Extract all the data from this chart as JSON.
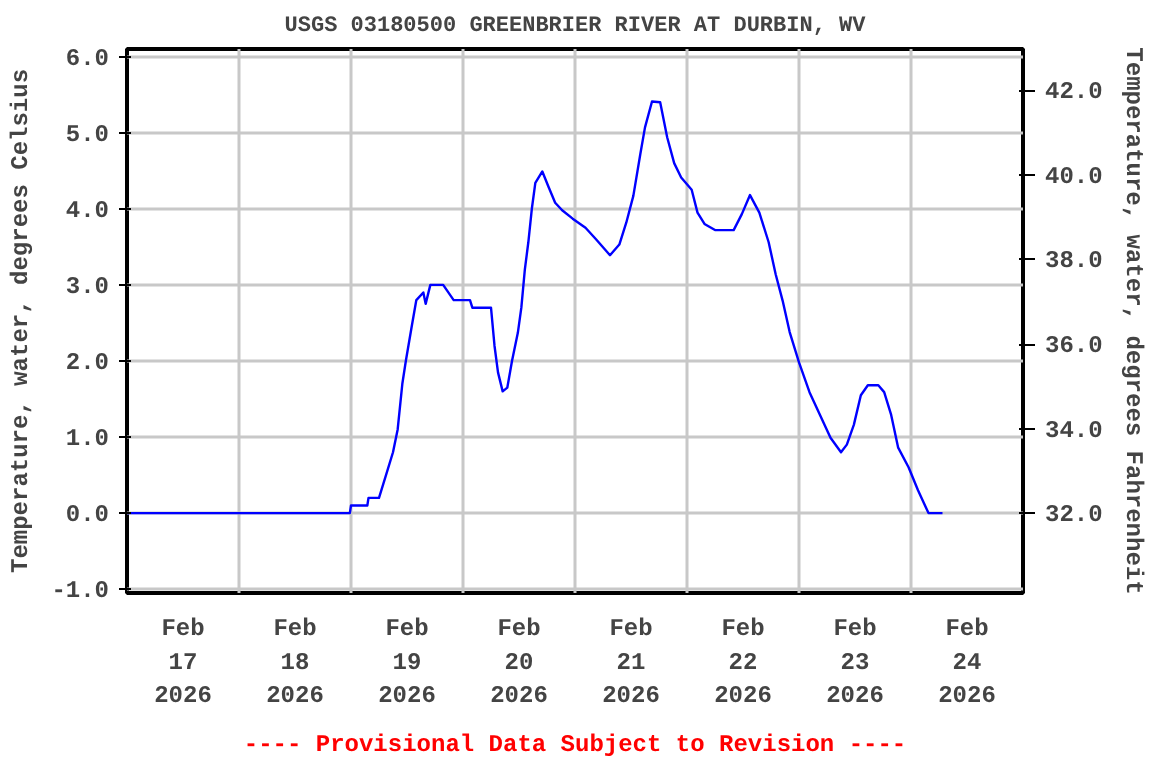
{
  "chart_data": {
    "type": "line",
    "title": "USGS 03180500 GREENBRIER RIVER AT DURBIN, WV",
    "ylabel": "Temperature, water, degrees Celsius",
    "y2label": "Temperature, water, degrees Fahrenheit",
    "annotations": [
      "---- Provisional Data Subject to Revision ----"
    ],
    "xlim": [
      "2026-02-17T00:00",
      "2026-02-25T00:00"
    ],
    "xticks": [
      {
        "value": "2026-02-17T00:00",
        "label": null
      },
      {
        "value": "2026-02-17T12:00",
        "label": "Feb\n17\n2026"
      },
      {
        "value": "2026-02-18T00:00",
        "label": null
      },
      {
        "value": "2026-02-18T12:00",
        "label": "Feb\n18\n2026"
      },
      {
        "value": "2026-02-19T00:00",
        "label": null
      },
      {
        "value": "2026-02-19T12:00",
        "label": "Feb\n19\n2026"
      },
      {
        "value": "2026-02-20T00:00",
        "label": null
      },
      {
        "value": "2026-02-20T12:00",
        "label": "Feb\n20\n2026"
      },
      {
        "value": "2026-02-21T00:00",
        "label": null
      },
      {
        "value": "2026-02-21T12:00",
        "label": "Feb\n21\n2026"
      },
      {
        "value": "2026-02-22T00:00",
        "label": null
      },
      {
        "value": "2026-02-22T12:00",
        "label": "Feb\n22\n2026"
      },
      {
        "value": "2026-02-23T00:00",
        "label": null
      },
      {
        "value": "2026-02-23T12:00",
        "label": "Feb\n23\n2026"
      },
      {
        "value": "2026-02-24T00:00",
        "label": null
      },
      {
        "value": "2026-02-24T12:00",
        "label": "Feb\n24\n2026"
      },
      {
        "value": "2026-02-25T00:00",
        "label": null
      }
    ],
    "ylim": [
      -1.05,
      6.1
    ],
    "yticks": [
      {
        "value": -1,
        "label": "-1.0"
      },
      {
        "value": 0,
        "label": "0.0"
      },
      {
        "value": 1,
        "label": "1.0"
      },
      {
        "value": 2,
        "label": "2.0"
      },
      {
        "value": 3,
        "label": "3.0"
      },
      {
        "value": 4,
        "label": "4.0"
      },
      {
        "value": 5,
        "label": "5.0"
      },
      {
        "value": 6,
        "label": "6.0"
      }
    ],
    "y2lim": [
      30.11,
      42.98
    ],
    "y2ticks": [
      {
        "value": 32,
        "label": "32.0"
      },
      {
        "value": 34,
        "label": "34.0"
      },
      {
        "value": 36,
        "label": "36.0"
      },
      {
        "value": 38,
        "label": "38.0"
      },
      {
        "value": 40,
        "label": "40.0"
      },
      {
        "value": 42,
        "label": "42.0"
      }
    ],
    "grid": true,
    "marker": "none",
    "line_style": "solid",
    "series": [
      {
        "color": "#0000ff",
        "x": [
          "2026-02-17T00:00",
          "2026-02-18T23:45",
          "2026-02-19T00:00",
          "2026-02-19T03:30",
          "2026-02-19T03:45",
          "2026-02-19T06:00",
          "2026-02-19T07:30",
          "2026-02-19T09:00",
          "2026-02-19T10:00",
          "2026-02-19T11:00",
          "2026-02-19T11:45",
          "2026-02-19T13:00",
          "2026-02-19T14:00",
          "2026-02-19T15:30",
          "2026-02-19T16:00",
          "2026-02-19T17:00",
          "2026-02-19T19:45",
          "2026-02-19T22:00",
          "2026-02-20T01:30",
          "2026-02-20T02:00",
          "2026-02-20T06:00",
          "2026-02-20T06:45",
          "2026-02-20T07:30",
          "2026-02-20T08:30",
          "2026-02-20T09:30",
          "2026-02-20T10:30",
          "2026-02-20T11:45",
          "2026-02-20T12:30",
          "2026-02-20T13:15",
          "2026-02-20T14:00",
          "2026-02-20T14:45",
          "2026-02-20T15:30",
          "2026-02-20T17:00",
          "2026-02-20T18:15",
          "2026-02-20T19:45",
          "2026-02-20T21:15",
          "2026-02-20T23:30",
          "2026-02-21T02:15",
          "2026-02-21T04:30",
          "2026-02-21T07:30",
          "2026-02-21T09:30",
          "2026-02-21T11:00",
          "2026-02-21T12:30",
          "2026-02-21T14:00",
          "2026-02-21T15:00",
          "2026-02-21T16:30",
          "2026-02-21T18:15",
          "2026-02-21T19:45",
          "2026-02-21T21:15",
          "2026-02-21T22:45",
          "2026-02-22T01:00",
          "2026-02-22T02:15",
          "2026-02-22T03:45",
          "2026-02-22T06:00",
          "2026-02-22T10:00",
          "2026-02-22T11:45",
          "2026-02-22T13:30",
          "2026-02-22T15:30",
          "2026-02-22T17:30",
          "2026-02-22T19:00",
          "2026-02-22T20:30",
          "2026-02-22T22:00",
          "2026-02-23T00:00",
          "2026-02-23T02:15",
          "2026-02-23T04:30",
          "2026-02-23T06:45",
          "2026-02-23T09:00",
          "2026-02-23T10:15",
          "2026-02-23T11:45",
          "2026-02-23T13:15",
          "2026-02-23T14:45",
          "2026-02-23T17:00",
          "2026-02-23T18:15",
          "2026-02-23T19:45",
          "2026-02-23T21:15",
          "2026-02-23T23:30",
          "2026-02-24T01:30",
          "2026-02-24T03:45",
          "2026-02-24T06:45"
        ],
        "values": [
          0.0,
          0.0,
          0.1,
          0.1,
          0.2,
          0.2,
          0.5,
          0.8,
          1.1,
          1.7,
          2.0,
          2.45,
          2.8,
          2.9,
          2.75,
          3.0,
          3.0,
          2.8,
          2.8,
          2.7,
          2.7,
          2.2,
          1.85,
          1.6,
          1.65,
          2.0,
          2.37,
          2.7,
          3.2,
          3.56,
          4.0,
          4.34,
          4.49,
          4.3,
          4.08,
          3.98,
          3.87,
          3.75,
          3.6,
          3.39,
          3.53,
          3.82,
          4.17,
          4.72,
          5.07,
          5.41,
          5.4,
          4.94,
          4.6,
          4.41,
          4.25,
          3.95,
          3.8,
          3.72,
          3.72,
          3.93,
          4.18,
          3.95,
          3.56,
          3.14,
          2.79,
          2.38,
          1.98,
          1.59,
          1.29,
          0.99,
          0.8,
          0.9,
          1.16,
          1.55,
          1.68,
          1.68,
          1.59,
          1.29,
          0.86,
          0.6,
          0.3,
          0.0,
          0.0
        ]
      }
    ]
  }
}
